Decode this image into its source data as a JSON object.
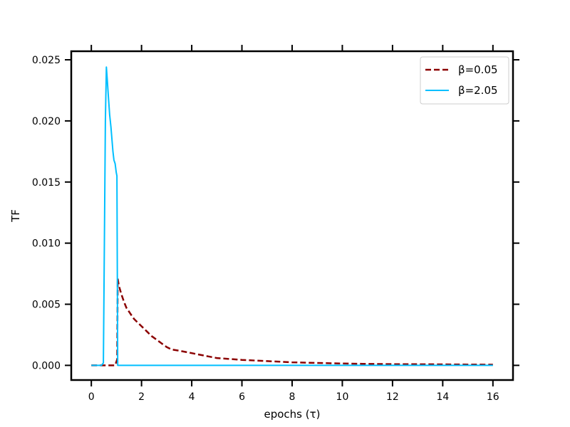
{
  "chart_data": {
    "type": "line",
    "title": "",
    "xlabel": "epochs (τ)",
    "ylabel": "TF",
    "xlim": [
      -0.8,
      16.8
    ],
    "ylim": [
      -0.0012,
      0.0257
    ],
    "xticks": [
      0,
      2,
      4,
      6,
      8,
      10,
      12,
      14,
      16
    ],
    "xtick_labels": [
      "0",
      "2",
      "4",
      "6",
      "8",
      "10",
      "12",
      "14",
      "16"
    ],
    "yticks": [
      0.0,
      0.005,
      0.01,
      0.015,
      0.02,
      0.025
    ],
    "ytick_labels": [
      "0.000",
      "0.005",
      "0.010",
      "0.015",
      "0.020",
      "0.025"
    ],
    "grid": false,
    "legend_position": "top-right",
    "series": [
      {
        "name": "β=0.05",
        "color": "#8b0000",
        "style": "dashed",
        "x": [
          0.0,
          0.5,
          0.95,
          1.03,
          1.05,
          1.1,
          1.2,
          1.3,
          1.4,
          1.5,
          1.6,
          1.7,
          1.8,
          2.0,
          2.2,
          2.4,
          2.6,
          2.8,
          3.0,
          3.2,
          3.5,
          4.0,
          4.5,
          5.0,
          6.0,
          7.0,
          8.0,
          9.0,
          10.0,
          11.0,
          12.0,
          13.0,
          14.0,
          15.0,
          16.0
        ],
        "y": [
          0.0,
          0.0,
          0.0,
          0.0005,
          0.0071,
          0.0065,
          0.0058,
          0.0052,
          0.0047,
          0.0044,
          0.0041,
          0.0038,
          0.0036,
          0.0032,
          0.0028,
          0.0024,
          0.0021,
          0.0018,
          0.0015,
          0.0013,
          0.0012,
          0.001,
          0.0008,
          0.0006,
          0.00045,
          0.00035,
          0.00025,
          0.0002,
          0.00015,
          0.00012,
          0.0001,
          9e-05,
          8e-05,
          7e-05,
          6e-05
        ]
      },
      {
        "name": "β=2.05",
        "color": "#00bfff",
        "style": "solid",
        "x": [
          0.0,
          0.4,
          0.48,
          0.52,
          0.56,
          0.6,
          0.63,
          0.68,
          0.73,
          0.78,
          0.82,
          0.86,
          0.9,
          0.95,
          0.99,
          1.02,
          1.05,
          1.1,
          2.0,
          4.0,
          8.0,
          12.0,
          16.0
        ],
        "y": [
          0.0,
          0.0,
          0.0002,
          0.01,
          0.02,
          0.0244,
          0.0235,
          0.022,
          0.0205,
          0.0195,
          0.0185,
          0.0175,
          0.0168,
          0.0165,
          0.0158,
          0.0155,
          0.0,
          0.0,
          0.0,
          0.0,
          0.0,
          0.0,
          0.0
        ]
      }
    ]
  }
}
